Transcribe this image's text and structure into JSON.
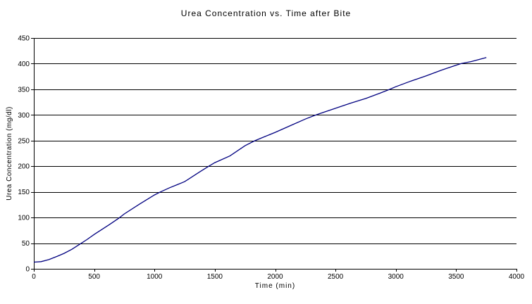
{
  "chart_data": {
    "type": "line",
    "title": "Urea Concentration vs. Time after Bite",
    "xlabel": "Time (min)",
    "ylabel": "Urea Concentration (mg/dl)",
    "xlim": [
      0,
      4000
    ],
    "ylim": [
      0,
      450
    ],
    "x_ticks": [
      0,
      500,
      1000,
      1500,
      2000,
      2500,
      3000,
      3500,
      4000
    ],
    "y_ticks": [
      0,
      50,
      100,
      150,
      200,
      250,
      300,
      350,
      400,
      450
    ],
    "grid": "horizontal-on",
    "legend_position": "none",
    "colors": {
      "line": "#000080",
      "grid": "#000000",
      "axis": "#000000",
      "text": "#000000",
      "background": "#ffffff"
    },
    "series": [
      {
        "name": "Urea Concentration",
        "points": [
          [
            0,
            13
          ],
          [
            60,
            14
          ],
          [
            125,
            18
          ],
          [
            190,
            24
          ],
          [
            250,
            30
          ],
          [
            315,
            38
          ],
          [
            375,
            47
          ],
          [
            440,
            57
          ],
          [
            500,
            67
          ],
          [
            625,
            86
          ],
          [
            700,
            98
          ],
          [
            750,
            107
          ],
          [
            875,
            126
          ],
          [
            1000,
            144
          ],
          [
            1050,
            150
          ],
          [
            1125,
            158
          ],
          [
            1250,
            170
          ],
          [
            1375,
            189
          ],
          [
            1450,
            200
          ],
          [
            1500,
            207
          ],
          [
            1625,
            220
          ],
          [
            1750,
            240
          ],
          [
            1825,
            249
          ],
          [
            1875,
            254
          ],
          [
            2000,
            266
          ],
          [
            2125,
            279
          ],
          [
            2250,
            292
          ],
          [
            2325,
            299
          ],
          [
            2375,
            303
          ],
          [
            2500,
            313
          ],
          [
            2625,
            323
          ],
          [
            2750,
            332
          ],
          [
            2875,
            343
          ],
          [
            2950,
            350
          ],
          [
            3000,
            355
          ],
          [
            3125,
            366
          ],
          [
            3250,
            376
          ],
          [
            3375,
            387
          ],
          [
            3500,
            397
          ],
          [
            3540,
            400
          ],
          [
            3625,
            404
          ],
          [
            3750,
            412
          ]
        ]
      }
    ]
  }
}
